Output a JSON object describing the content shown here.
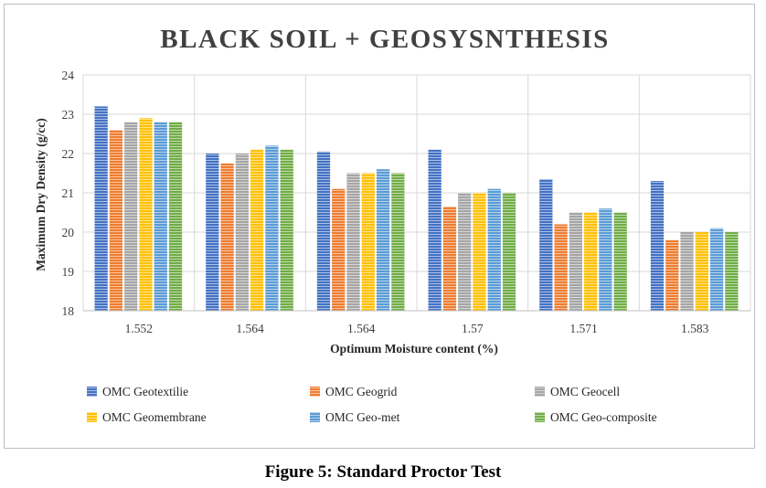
{
  "chart_data": {
    "type": "bar",
    "title": "BLACK SOIL + GEOSYSNTHESIS",
    "xlabel": "Optimum Moisture content (%)",
    "ylabel": "Maximum Dry Density (g/cc)",
    "categories": [
      "1.552",
      "1.564",
      "1.564",
      "1.57",
      "1.571",
      "1.583"
    ],
    "ylim": [
      18,
      24
    ],
    "yticks": [
      "18",
      "19",
      "20",
      "21",
      "22",
      "23",
      "24"
    ],
    "grid": true,
    "legend_position": "bottom",
    "series": [
      {
        "name": "OMC Geotextilie",
        "color": "#4472c4",
        "values": [
          23.2,
          22.0,
          22.05,
          22.1,
          21.35,
          21.3
        ]
      },
      {
        "name": "OMC Geogrid",
        "color": "#ed7d31",
        "values": [
          22.6,
          21.75,
          21.1,
          20.65,
          20.2,
          19.8
        ]
      },
      {
        "name": "OMC Geocell",
        "color": "#a5a5a5",
        "values": [
          22.8,
          22.0,
          21.5,
          21.0,
          20.5,
          20.0
        ]
      },
      {
        "name": "OMC Geomembrane",
        "color": "#ffc000",
        "values": [
          22.9,
          22.1,
          21.5,
          21.0,
          20.5,
          20.0
        ]
      },
      {
        "name": "OMC Geo-met",
        "color": "#5b9bd5",
        "values": [
          22.8,
          22.2,
          21.6,
          21.1,
          20.6,
          20.1
        ]
      },
      {
        "name": "OMC  Geo-composite",
        "color": "#70ad47",
        "values": [
          22.8,
          22.1,
          21.5,
          21.0,
          20.5,
          20.0
        ]
      }
    ]
  },
  "caption": "Figure 5: Standard Proctor Test"
}
